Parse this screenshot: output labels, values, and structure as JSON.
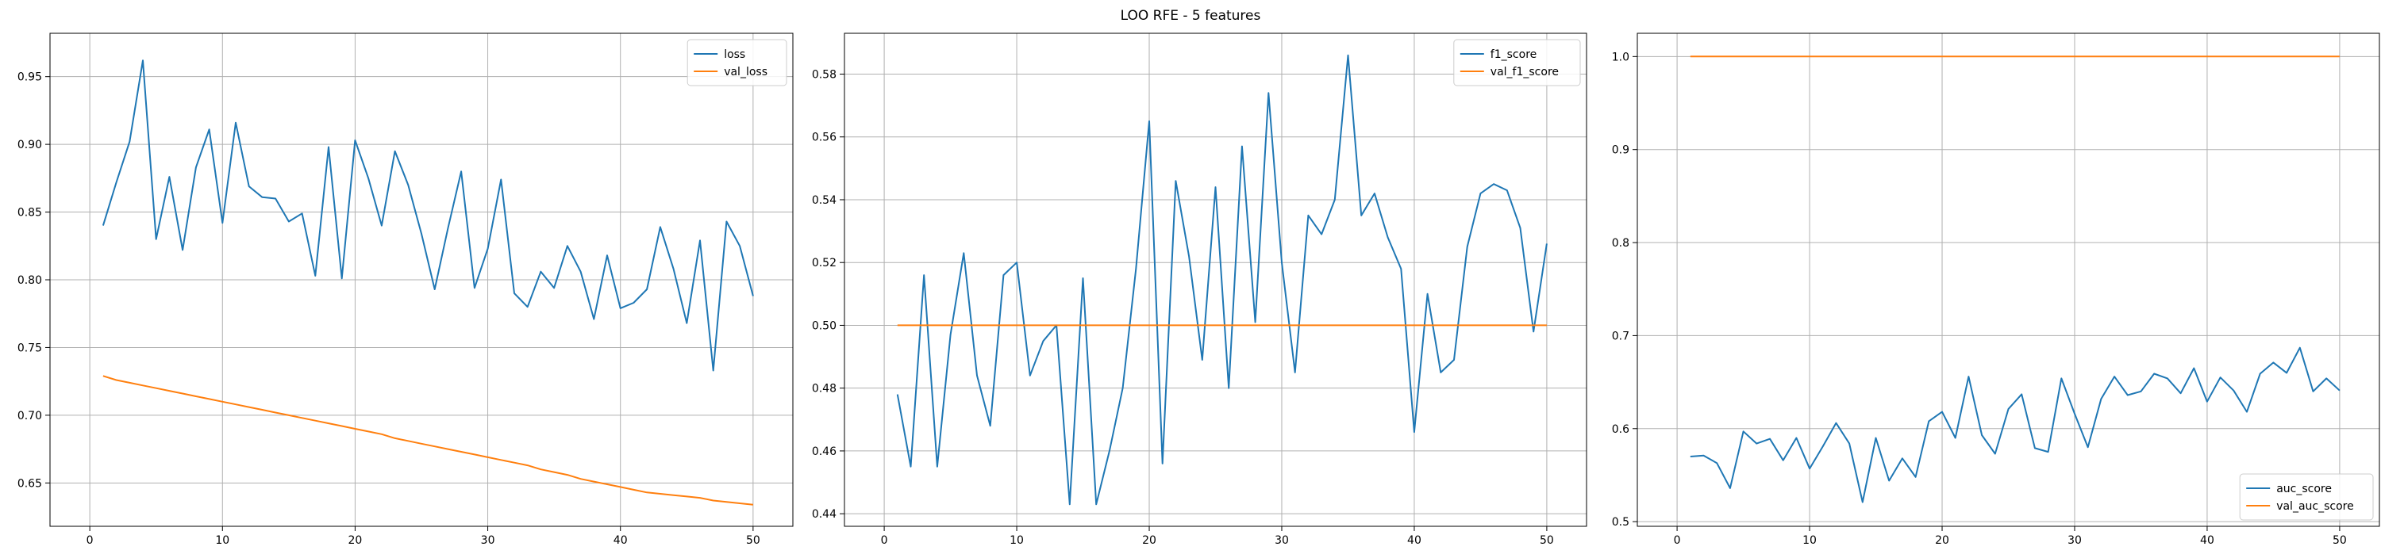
{
  "figure": {
    "suptitle": "LOO RFE - 5 features"
  },
  "colors": {
    "series1": "#1f77b4",
    "series2": "#ff7f0e",
    "grid": "#b0b0b0"
  },
  "chart_data": [
    {
      "type": "line",
      "legend_position": "top-right",
      "grid": true,
      "xlim": [
        -3,
        53
      ],
      "ylim": [
        0.618,
        0.982
      ],
      "xticks": [
        0,
        10,
        20,
        30,
        40,
        50
      ],
      "yticks": [
        0.65,
        0.7,
        0.75,
        0.8,
        0.85,
        0.9,
        0.95
      ],
      "series": [
        {
          "name": "loss",
          "color": "#1f77b4",
          "x": [
            1,
            2,
            3,
            4,
            5,
            6,
            7,
            8,
            9,
            10,
            11,
            12,
            13,
            14,
            15,
            16,
            17,
            18,
            19,
            20,
            21,
            22,
            23,
            24,
            25,
            26,
            27,
            28,
            29,
            30,
            31,
            32,
            33,
            34,
            35,
            36,
            37,
            38,
            39,
            40,
            41,
            42,
            43,
            44,
            45,
            46,
            47,
            48,
            49,
            50
          ],
          "y": [
            0.84,
            0.872,
            0.902,
            0.962,
            0.83,
            0.876,
            0.822,
            0.883,
            0.911,
            0.842,
            0.916,
            0.869,
            0.861,
            0.86,
            0.843,
            0.849,
            0.803,
            0.898,
            0.801,
            0.903,
            0.875,
            0.84,
            0.895,
            0.87,
            0.834,
            0.793,
            0.838,
            0.88,
            0.794,
            0.823,
            0.874,
            0.79,
            0.78,
            0.806,
            0.794,
            0.825,
            0.806,
            0.771,
            0.818,
            0.779,
            0.783,
            0.793,
            0.839,
            0.808,
            0.768,
            0.829,
            0.733,
            0.843,
            0.825,
            0.788
          ]
        },
        {
          "name": "val_loss",
          "color": "#ff7f0e",
          "x": [
            1,
            2,
            3,
            4,
            5,
            6,
            7,
            8,
            9,
            10,
            11,
            12,
            13,
            14,
            15,
            16,
            17,
            18,
            19,
            20,
            21,
            22,
            23,
            24,
            25,
            26,
            27,
            28,
            29,
            30,
            31,
            32,
            33,
            34,
            35,
            36,
            37,
            38,
            39,
            40,
            41,
            42,
            43,
            44,
            45,
            46,
            47,
            48,
            49,
            50
          ],
          "y": [
            0.729,
            0.726,
            0.724,
            0.722,
            0.72,
            0.718,
            0.716,
            0.714,
            0.712,
            0.71,
            0.708,
            0.706,
            0.704,
            0.702,
            0.7,
            0.698,
            0.696,
            0.694,
            0.692,
            0.69,
            0.688,
            0.686,
            0.683,
            0.681,
            0.679,
            0.677,
            0.675,
            0.673,
            0.671,
            0.669,
            0.667,
            0.665,
            0.663,
            0.66,
            0.658,
            0.656,
            0.653,
            0.651,
            0.649,
            0.647,
            0.645,
            0.643,
            0.642,
            0.641,
            0.64,
            0.639,
            0.637,
            0.636,
            0.635,
            0.634
          ]
        }
      ]
    },
    {
      "type": "line",
      "legend_position": "top-right",
      "grid": true,
      "xlim": [
        -3,
        53
      ],
      "ylim": [
        0.436,
        0.593
      ],
      "xticks": [
        0,
        10,
        20,
        30,
        40,
        50
      ],
      "yticks": [
        0.44,
        0.46,
        0.48,
        0.5,
        0.52,
        0.54,
        0.56,
        0.58
      ],
      "series": [
        {
          "name": "f1_score",
          "color": "#1f77b4",
          "x": [
            1,
            2,
            3,
            4,
            5,
            6,
            7,
            8,
            9,
            10,
            11,
            12,
            13,
            14,
            15,
            16,
            17,
            18,
            19,
            20,
            21,
            22,
            23,
            24,
            25,
            26,
            27,
            28,
            29,
            30,
            31,
            32,
            33,
            34,
            35,
            36,
            37,
            38,
            39,
            40,
            41,
            42,
            43,
            44,
            45,
            46,
            47,
            48,
            49,
            50
          ],
          "y": [
            0.478,
            0.455,
            0.516,
            0.455,
            0.497,
            0.523,
            0.484,
            0.468,
            0.516,
            0.52,
            0.484,
            0.495,
            0.5,
            0.443,
            0.515,
            0.443,
            0.46,
            0.48,
            0.518,
            0.565,
            0.456,
            0.546,
            0.522,
            0.489,
            0.544,
            0.48,
            0.557,
            0.501,
            0.574,
            0.52,
            0.485,
            0.535,
            0.529,
            0.54,
            0.586,
            0.535,
            0.542,
            0.528,
            0.518,
            0.466,
            0.51,
            0.485,
            0.489,
            0.525,
            0.542,
            0.545,
            0.543,
            0.531,
            0.498,
            0.526
          ]
        },
        {
          "name": "val_f1_score",
          "color": "#ff7f0e",
          "x": [
            1,
            50
          ],
          "y": [
            0.5,
            0.5
          ]
        }
      ]
    },
    {
      "type": "line",
      "legend_position": "bottom-right",
      "grid": true,
      "xlim": [
        -3,
        53
      ],
      "ylim": [
        0.495,
        1.025
      ],
      "xticks": [
        0,
        10,
        20,
        30,
        40,
        50
      ],
      "yticks": [
        0.5,
        0.6,
        0.7,
        0.8,
        0.9,
        1.0
      ],
      "series": [
        {
          "name": "auc_score",
          "color": "#1f77b4",
          "x": [
            1,
            2,
            3,
            4,
            5,
            6,
            7,
            8,
            9,
            10,
            11,
            12,
            13,
            14,
            15,
            16,
            17,
            18,
            19,
            20,
            21,
            22,
            23,
            24,
            25,
            26,
            27,
            28,
            29,
            30,
            31,
            32,
            33,
            34,
            35,
            36,
            37,
            38,
            39,
            40,
            41,
            42,
            43,
            44,
            45,
            46,
            47,
            48,
            49,
            50
          ],
          "y": [
            0.57,
            0.571,
            0.563,
            0.536,
            0.597,
            0.584,
            0.589,
            0.566,
            0.59,
            0.557,
            0.581,
            0.606,
            0.584,
            0.521,
            0.59,
            0.544,
            0.568,
            0.548,
            0.608,
            0.618,
            0.59,
            0.656,
            0.593,
            0.573,
            0.621,
            0.637,
            0.579,
            0.575,
            0.654,
            0.616,
            0.58,
            0.632,
            0.656,
            0.636,
            0.64,
            0.659,
            0.654,
            0.638,
            0.665,
            0.629,
            0.655,
            0.641,
            0.618,
            0.659,
            0.671,
            0.66,
            0.687,
            0.64,
            0.654,
            0.641
          ]
        },
        {
          "name": "val_auc_score",
          "color": "#ff7f0e",
          "x": [
            1,
            50
          ],
          "y": [
            1.0,
            1.0
          ]
        }
      ]
    }
  ]
}
